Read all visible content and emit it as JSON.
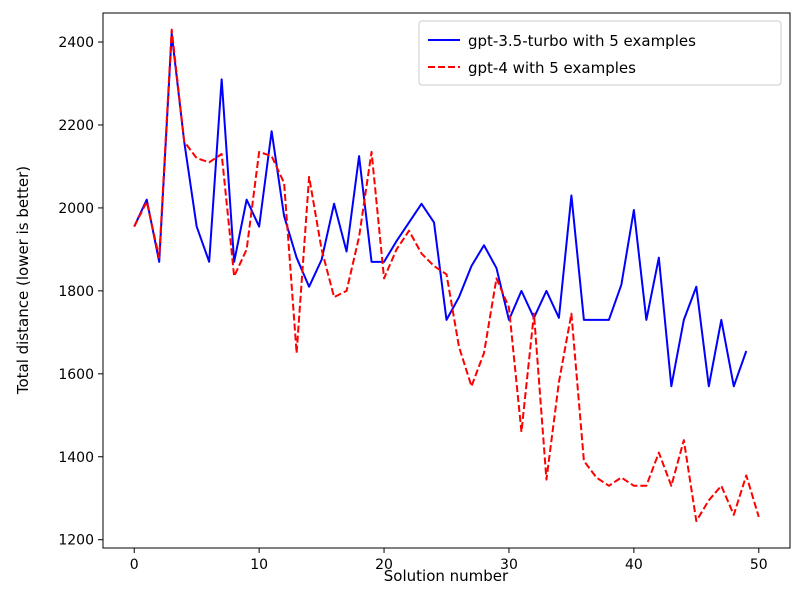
{
  "chart_data": {
    "type": "line",
    "title": "",
    "xlabel": "Solution number",
    "ylabel": "Total distance (lower is better)",
    "xlim": [
      -2.5,
      52.5
    ],
    "ylim": [
      1180,
      2470
    ],
    "xticks": [
      0,
      10,
      20,
      30,
      40,
      50
    ],
    "yticks": [
      1200,
      1400,
      1600,
      1800,
      2000,
      2200,
      2400
    ],
    "grid": false,
    "legend_position": "top-right",
    "series": [
      {
        "name": "gpt-3.5-turbo with 5 examples",
        "color": "#0000ff",
        "style": "solid",
        "values": [
          1955,
          2020,
          1870,
          2420,
          2160,
          1955,
          1870,
          2310,
          1870,
          2020,
          1955,
          2185,
          1980,
          1880,
          1810,
          1875,
          2010,
          1895,
          2125,
          1870,
          1870,
          1920,
          1965,
          2010,
          1965,
          1730,
          1785,
          1860,
          1910,
          1855,
          1730,
          1800,
          1735,
          1800,
          1735,
          2030,
          1730,
          1730,
          1730,
          1815,
          1995,
          1730,
          1880,
          1570,
          1730,
          1810,
          1570,
          1730,
          1570,
          1655
        ]
      },
      {
        "name": "gpt-4 with 5 examples",
        "color": "#ff0000",
        "style": "dashed",
        "values": [
          1955,
          2015,
          1880,
          2430,
          2160,
          2120,
          2110,
          2130,
          1835,
          1900,
          2135,
          2125,
          2060,
          1650,
          2075,
          1900,
          1785,
          1800,
          1930,
          2135,
          1830,
          1900,
          1945,
          1890,
          1860,
          1840,
          1665,
          1570,
          1650,
          1830,
          1760,
          1460,
          1745,
          1345,
          1580,
          1745,
          1390,
          1350,
          1330,
          1350,
          1330,
          1330,
          1410,
          1330,
          1440,
          1245,
          1295,
          1330,
          1260,
          1355,
          1255
        ]
      }
    ]
  }
}
